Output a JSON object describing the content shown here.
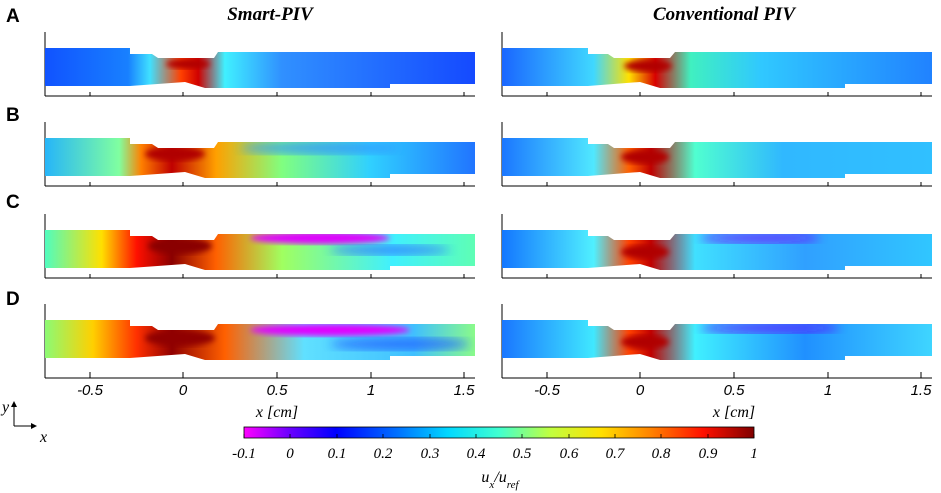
{
  "panels": {
    "labels": [
      "A",
      "B",
      "C",
      "D"
    ]
  },
  "columns": {
    "left_title": "Smart-PIV",
    "right_title": "Conventional PIV"
  },
  "x_axis": {
    "ticks": [
      "-0.5",
      "0",
      "0.5",
      "1",
      "1.5"
    ],
    "label": "x [cm]"
  },
  "coordinate_indicator": {
    "y_label": "y",
    "x_label": "x"
  },
  "colorbar": {
    "ticks": [
      "-0.1",
      "0",
      "0.1",
      "0.2",
      "0.3",
      "0.4",
      "0.5",
      "0.6",
      "0.7",
      "0.8",
      "0.9",
      "1"
    ],
    "label_main": "u",
    "label_sub1": "x",
    "label_sep": "/u",
    "label_sub2": "ref"
  }
}
